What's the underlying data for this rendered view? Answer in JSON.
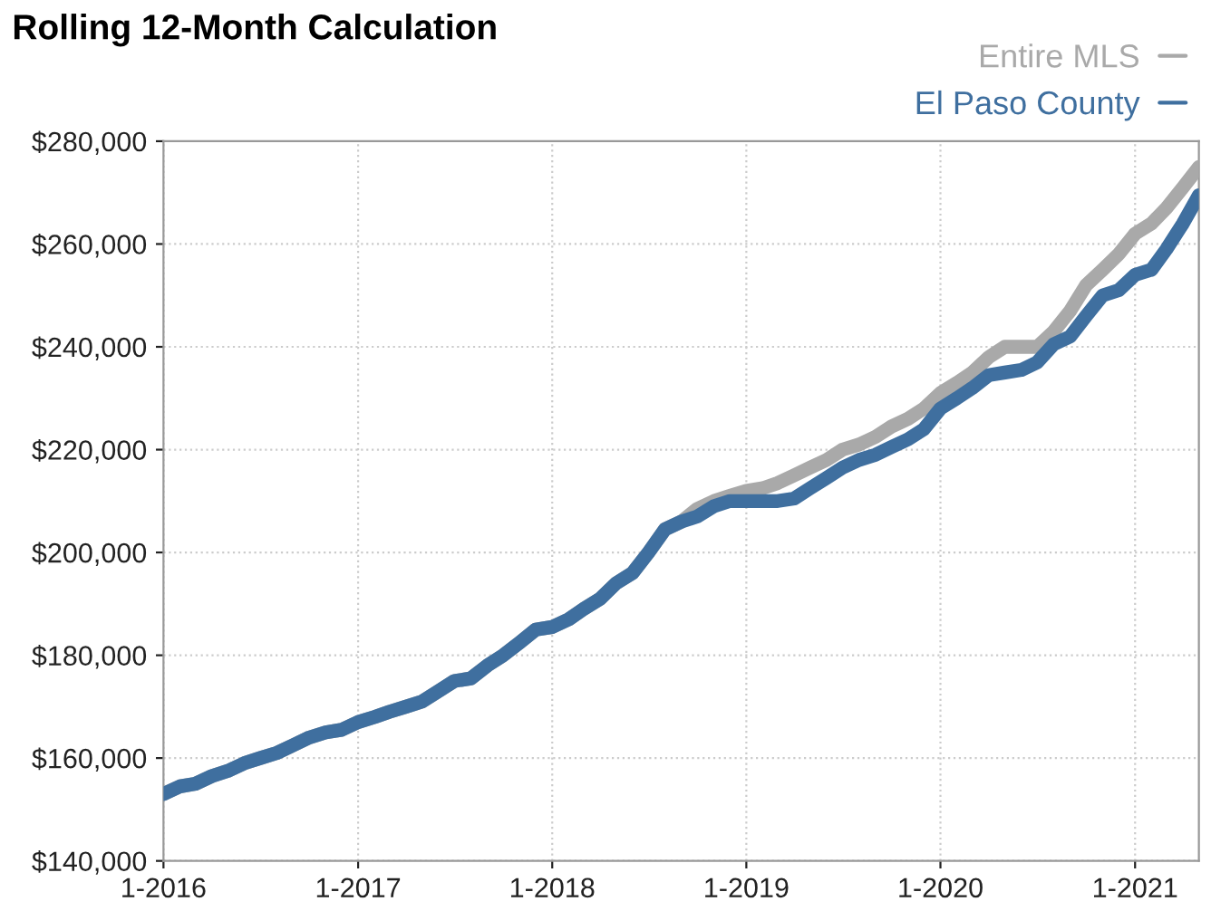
{
  "chart_data": {
    "type": "line",
    "title": "Rolling 12-Month Calculation",
    "x": [
      "2016-01",
      "2016-02",
      "2016-03",
      "2016-04",
      "2016-05",
      "2016-06",
      "2016-07",
      "2016-08",
      "2016-09",
      "2016-10",
      "2016-11",
      "2016-12",
      "2017-01",
      "2017-02",
      "2017-03",
      "2017-04",
      "2017-05",
      "2017-06",
      "2017-07",
      "2017-08",
      "2017-09",
      "2017-10",
      "2017-11",
      "2017-12",
      "2018-01",
      "2018-02",
      "2018-03",
      "2018-04",
      "2018-05",
      "2018-06",
      "2018-07",
      "2018-08",
      "2018-09",
      "2018-10",
      "2018-11",
      "2018-12",
      "2019-01",
      "2019-02",
      "2019-03",
      "2019-04",
      "2019-05",
      "2019-06",
      "2019-07",
      "2019-08",
      "2019-09",
      "2019-10",
      "2019-11",
      "2019-12",
      "2020-01",
      "2020-02",
      "2020-03",
      "2020-04",
      "2020-05",
      "2020-06",
      "2020-07",
      "2020-08",
      "2020-09",
      "2020-10",
      "2020-11",
      "2020-12",
      "2021-01",
      "2021-02",
      "2021-03",
      "2021-04",
      "2021-05"
    ],
    "series": [
      {
        "name": "Entire MLS",
        "color": "#a9a9a9",
        "values": [
          153000,
          154500,
          155000,
          156500,
          157500,
          159000,
          160000,
          161000,
          162500,
          164000,
          165000,
          165500,
          167000,
          168000,
          169000,
          170000,
          171000,
          173000,
          175000,
          175500,
          178000,
          180000,
          182500,
          185000,
          185500,
          187000,
          189000,
          191000,
          194000,
          196000,
          200000,
          204500,
          206000,
          208500,
          210000,
          211000,
          212000,
          212500,
          213500,
          215000,
          216500,
          218000,
          220000,
          221000,
          222500,
          224500,
          226000,
          228000,
          231000,
          233000,
          235000,
          238000,
          240000,
          240000,
          240000,
          243000,
          247000,
          252000,
          255000,
          258000,
          262000,
          264000,
          267000,
          271000,
          275000
        ]
      },
      {
        "name": "El Paso County",
        "color": "#3f6f9f",
        "values": [
          153000,
          154500,
          155000,
          156500,
          157500,
          159000,
          160000,
          161000,
          162500,
          164000,
          165000,
          165500,
          167000,
          168000,
          169000,
          170000,
          171000,
          173000,
          175000,
          175500,
          178000,
          180000,
          182500,
          185000,
          185500,
          187000,
          189000,
          191000,
          194000,
          196000,
          200000,
          204500,
          206000,
          207000,
          209000,
          210000,
          210000,
          210000,
          210000,
          210500,
          212500,
          214500,
          216500,
          218000,
          219000,
          220500,
          222000,
          224000,
          228000,
          230000,
          232000,
          234500,
          235000,
          235500,
          237000,
          240500,
          242000,
          246000,
          250000,
          251000,
          254000,
          255000,
          259000,
          264000,
          269500
        ]
      }
    ],
    "xlim": [
      "2016-01",
      "2021-05"
    ],
    "xticks": [
      {
        "value": "2016-01",
        "label": "1-2016"
      },
      {
        "value": "2017-01",
        "label": "1-2017"
      },
      {
        "value": "2018-01",
        "label": "1-2018"
      },
      {
        "value": "2019-01",
        "label": "1-2019"
      },
      {
        "value": "2020-01",
        "label": "1-2020"
      },
      {
        "value": "2021-01",
        "label": "1-2021"
      }
    ],
    "ylim": [
      140000,
      280000
    ],
    "yticks": [
      {
        "value": 140000,
        "label": "$140,000"
      },
      {
        "value": 160000,
        "label": "$160,000"
      },
      {
        "value": 180000,
        "label": "$180,000"
      },
      {
        "value": 200000,
        "label": "$200,000"
      },
      {
        "value": 220000,
        "label": "$220,000"
      },
      {
        "value": 240000,
        "label": "$240,000"
      },
      {
        "value": 260000,
        "label": "$260,000"
      },
      {
        "value": 280000,
        "label": "$280,000"
      }
    ],
    "grid": true,
    "legend": "top right",
    "marker": "none",
    "line_style": "solid"
  }
}
